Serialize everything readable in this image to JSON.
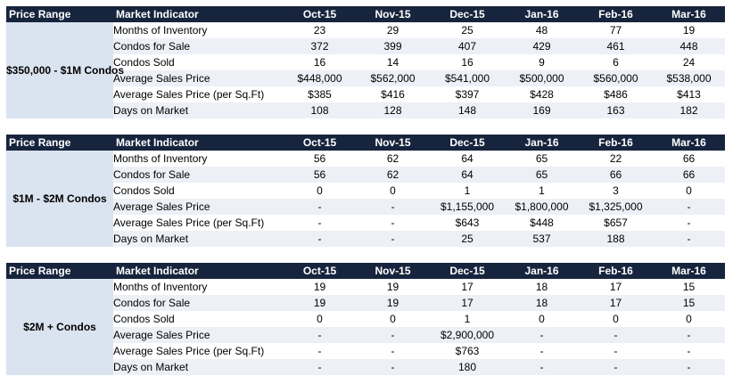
{
  "header": {
    "price_range": "Price Range",
    "market_indicator": "Market Indicator",
    "months": [
      "Oct-15",
      "Nov-15",
      "Dec-15",
      "Jan-16",
      "Feb-16",
      "Mar-16"
    ]
  },
  "tables": [
    {
      "range_label": "$350,000 - $1M Condos",
      "rows": [
        {
          "indicator": "Months of Inventory",
          "values": [
            "23",
            "29",
            "25",
            "48",
            "77",
            "19"
          ]
        },
        {
          "indicator": "Condos for Sale",
          "values": [
            "372",
            "399",
            "407",
            "429",
            "461",
            "448"
          ]
        },
        {
          "indicator": "Condos Sold",
          "values": [
            "16",
            "14",
            "16",
            "9",
            "6",
            "24"
          ]
        },
        {
          "indicator": "Average Sales Price",
          "values": [
            "$448,000",
            "$562,000",
            "$541,000",
            "$500,000",
            "$560,000",
            "$538,000"
          ]
        },
        {
          "indicator": "Average Sales Price (per Sq.Ft)",
          "values": [
            "$385",
            "$416",
            "$397",
            "$428",
            "$486",
            "$413"
          ]
        },
        {
          "indicator": "Days on Market",
          "values": [
            "108",
            "128",
            "148",
            "169",
            "163",
            "182"
          ]
        }
      ]
    },
    {
      "range_label": "$1M - $2M Condos",
      "rows": [
        {
          "indicator": "Months of Inventory",
          "values": [
            "56",
            "62",
            "64",
            "65",
            "22",
            "66"
          ]
        },
        {
          "indicator": "Condos for Sale",
          "values": [
            "56",
            "62",
            "64",
            "65",
            "66",
            "66"
          ]
        },
        {
          "indicator": "Condos Sold",
          "values": [
            "0",
            "0",
            "1",
            "1",
            "3",
            "0"
          ]
        },
        {
          "indicator": "Average Sales Price",
          "values": [
            "-",
            "-",
            "$1,155,000",
            "$1,800,000",
            "$1,325,000",
            "-"
          ]
        },
        {
          "indicator": "Average Sales Price (per Sq.Ft)",
          "values": [
            "-",
            "-",
            "$643",
            "$448",
            "$657",
            "-"
          ]
        },
        {
          "indicator": "Days on Market",
          "values": [
            "-",
            "-",
            "25",
            "537",
            "188",
            "-"
          ]
        }
      ]
    },
    {
      "range_label": "$2M + Condos",
      "rows": [
        {
          "indicator": "Months of Inventory",
          "values": [
            "19",
            "19",
            "17",
            "18",
            "17",
            "15"
          ]
        },
        {
          "indicator": "Condos for Sale",
          "values": [
            "19",
            "19",
            "17",
            "18",
            "17",
            "15"
          ]
        },
        {
          "indicator": "Condos Sold",
          "values": [
            "0",
            "0",
            "1",
            "0",
            "0",
            "0"
          ]
        },
        {
          "indicator": "Average Sales Price",
          "values": [
            "-",
            "-",
            "$2,900,000",
            "-",
            "-",
            "-"
          ]
        },
        {
          "indicator": "Average Sales Price (per Sq.Ft)",
          "values": [
            "-",
            "-",
            "$763",
            "-",
            "-",
            "-"
          ]
        },
        {
          "indicator": "Days on Market",
          "values": [
            "-",
            "-",
            "180",
            "-",
            "-",
            "-"
          ]
        }
      ]
    }
  ]
}
